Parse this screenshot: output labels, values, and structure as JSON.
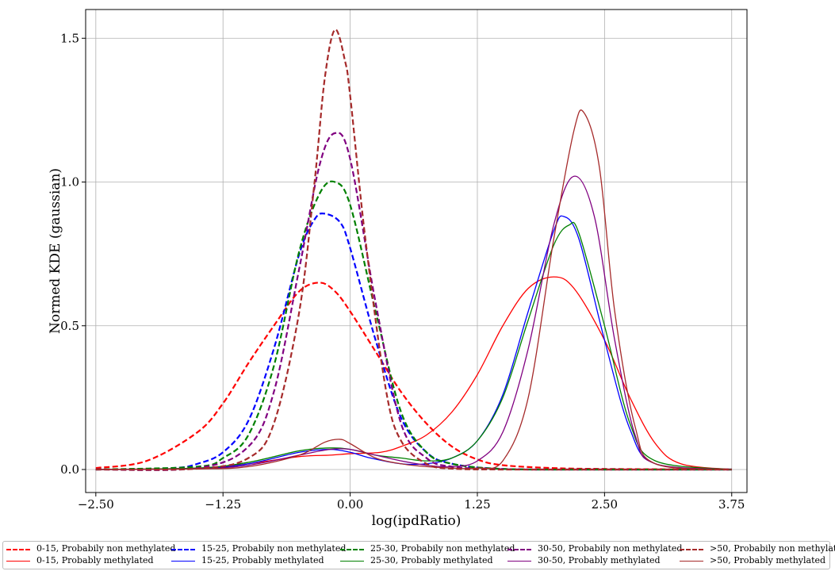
{
  "chart_data": {
    "type": "line",
    "xlabel": "log(ipdRatio)",
    "ylabel": "Normed KDE (gaussian)",
    "xlim": [
      -2.6,
      3.9
    ],
    "ylim": [
      -0.08,
      1.6
    ],
    "xticks": [
      -2.5,
      -1.25,
      0.0,
      1.25,
      2.5,
      3.75
    ],
    "xtick_labels": [
      "−2.50",
      "−1.25",
      "0.00",
      "1.25",
      "2.50",
      "3.75"
    ],
    "yticks": [
      0.0,
      0.5,
      1.0,
      1.5
    ],
    "ytick_labels": [
      "0.0",
      "0.5",
      "1.0",
      "1.5"
    ],
    "grid": true,
    "legend_position": "bottom",
    "series": [
      {
        "name": "0-15, Probabily non methylated",
        "color": "#ff0000",
        "style": "dashed",
        "x": [
          -2.5,
          -2.0,
          -1.5,
          -1.25,
          -1.0,
          -0.75,
          -0.5,
          -0.3,
          -0.15,
          0.0,
          0.25,
          0.5,
          0.75,
          1.0,
          1.25,
          1.5,
          2.0,
          2.5,
          3.75
        ],
        "y": [
          0.005,
          0.03,
          0.13,
          0.23,
          0.37,
          0.5,
          0.62,
          0.65,
          0.62,
          0.55,
          0.41,
          0.27,
          0.16,
          0.08,
          0.035,
          0.015,
          0.005,
          0.002,
          0.0
        ]
      },
      {
        "name": "0-15, Probably methylated",
        "color": "#ff0000",
        "style": "solid",
        "x": [
          -2.5,
          -1.5,
          -1.0,
          -0.5,
          -0.2,
          0.0,
          0.3,
          0.5,
          0.75,
          1.0,
          1.25,
          1.5,
          1.75,
          2.0,
          2.2,
          2.5,
          2.75,
          3.0,
          3.25,
          3.75
        ],
        "y": [
          0.0,
          0.005,
          0.02,
          0.045,
          0.05,
          0.055,
          0.06,
          0.08,
          0.12,
          0.2,
          0.33,
          0.5,
          0.63,
          0.67,
          0.63,
          0.45,
          0.25,
          0.09,
          0.02,
          0.0
        ]
      },
      {
        "name": "15-25, Probabily non methylated",
        "color": "#0000ff",
        "style": "dashed",
        "x": [
          -2.5,
          -1.75,
          -1.5,
          -1.25,
          -1.0,
          -0.75,
          -0.5,
          -0.35,
          -0.25,
          -0.1,
          0.0,
          0.25,
          0.5,
          0.75,
          1.0,
          1.5,
          2.5,
          3.75
        ],
        "y": [
          0.0,
          0.005,
          0.02,
          0.06,
          0.17,
          0.42,
          0.75,
          0.87,
          0.89,
          0.86,
          0.77,
          0.45,
          0.18,
          0.06,
          0.02,
          0.002,
          0.0,
          0.0
        ]
      },
      {
        "name": "15-25, Probably methylated",
        "color": "#0000ff",
        "style": "solid",
        "x": [
          -2.5,
          -1.5,
          -1.0,
          -0.5,
          -0.2,
          0.0,
          0.2,
          0.5,
          0.75,
          1.0,
          1.25,
          1.5,
          1.75,
          2.0,
          2.1,
          2.25,
          2.5,
          2.75,
          3.0,
          3.75
        ],
        "y": [
          0.0,
          0.003,
          0.02,
          0.06,
          0.07,
          0.06,
          0.04,
          0.02,
          0.02,
          0.04,
          0.1,
          0.26,
          0.55,
          0.83,
          0.88,
          0.8,
          0.45,
          0.14,
          0.02,
          0.0
        ]
      },
      {
        "name": "25-30, Probabily non methylated",
        "color": "#008000",
        "style": "dashed",
        "x": [
          -2.5,
          -1.5,
          -1.25,
          -1.0,
          -0.75,
          -0.5,
          -0.3,
          -0.15,
          0.0,
          0.25,
          0.5,
          0.75,
          1.0,
          1.5,
          2.5,
          3.75
        ],
        "y": [
          0.0,
          0.01,
          0.04,
          0.12,
          0.36,
          0.76,
          0.96,
          1.0,
          0.92,
          0.55,
          0.2,
          0.06,
          0.02,
          0.002,
          0.0,
          0.0
        ]
      },
      {
        "name": "25-30, Probably methylated",
        "color": "#008000",
        "style": "solid",
        "x": [
          -2.5,
          -1.5,
          -1.0,
          -0.5,
          -0.2,
          0.0,
          0.25,
          0.5,
          0.75,
          1.0,
          1.25,
          1.5,
          1.75,
          2.0,
          2.15,
          2.25,
          2.5,
          2.75,
          3.0,
          3.75
        ],
        "y": [
          0.0,
          0.005,
          0.025,
          0.065,
          0.075,
          0.07,
          0.05,
          0.04,
          0.03,
          0.04,
          0.1,
          0.25,
          0.52,
          0.78,
          0.85,
          0.82,
          0.5,
          0.16,
          0.03,
          0.0
        ]
      },
      {
        "name": "30-50, Probabily non methylated",
        "color": "#800080",
        "style": "dashed",
        "x": [
          -2.5,
          -1.5,
          -1.0,
          -0.75,
          -0.5,
          -0.3,
          -0.15,
          0.0,
          0.25,
          0.5,
          0.75,
          1.0,
          1.5,
          2.5,
          3.75
        ],
        "y": [
          0.0,
          0.005,
          0.08,
          0.27,
          0.7,
          1.06,
          1.17,
          1.08,
          0.58,
          0.16,
          0.04,
          0.01,
          0.001,
          0.0,
          0.0
        ]
      },
      {
        "name": "30-50, Probably methylated",
        "color": "#800080",
        "style": "solid",
        "x": [
          -2.5,
          -1.5,
          -1.0,
          -0.5,
          -0.2,
          0.0,
          0.25,
          0.5,
          0.75,
          1.0,
          1.25,
          1.5,
          1.75,
          2.0,
          2.2,
          2.4,
          2.6,
          2.8,
          3.0,
          3.75
        ],
        "y": [
          0.0,
          0.003,
          0.015,
          0.05,
          0.07,
          0.07,
          0.05,
          0.03,
          0.015,
          0.01,
          0.03,
          0.13,
          0.42,
          0.85,
          1.02,
          0.88,
          0.45,
          0.12,
          0.02,
          0.0
        ]
      },
      {
        "name": ">50, Probabily non methylated",
        "color": "#a52a2a",
        "style": "dashed",
        "x": [
          -2.5,
          -1.5,
          -1.0,
          -0.75,
          -0.5,
          -0.35,
          -0.25,
          -0.15,
          -0.05,
          0.0,
          0.15,
          0.35,
          0.5,
          0.75,
          1.0,
          1.5,
          2.5,
          3.75
        ],
        "y": [
          0.0,
          0.003,
          0.04,
          0.16,
          0.55,
          1.0,
          1.36,
          1.53,
          1.42,
          1.3,
          0.8,
          0.28,
          0.1,
          0.02,
          0.003,
          0.0,
          0.0,
          0.0
        ]
      },
      {
        "name": ">50, Probably methylated",
        "color": "#a52a2a",
        "style": "solid",
        "x": [
          -2.5,
          -1.5,
          -1.0,
          -0.5,
          -0.25,
          -0.1,
          0.0,
          0.25,
          0.5,
          0.75,
          1.0,
          1.25,
          1.5,
          1.75,
          2.0,
          2.2,
          2.3,
          2.45,
          2.6,
          2.8,
          3.0,
          3.75
        ],
        "y": [
          0.0,
          0.002,
          0.01,
          0.05,
          0.095,
          0.105,
          0.09,
          0.04,
          0.02,
          0.01,
          0.005,
          0.005,
          0.03,
          0.25,
          0.8,
          1.18,
          1.24,
          1.05,
          0.55,
          0.15,
          0.02,
          0.0
        ]
      }
    ]
  }
}
